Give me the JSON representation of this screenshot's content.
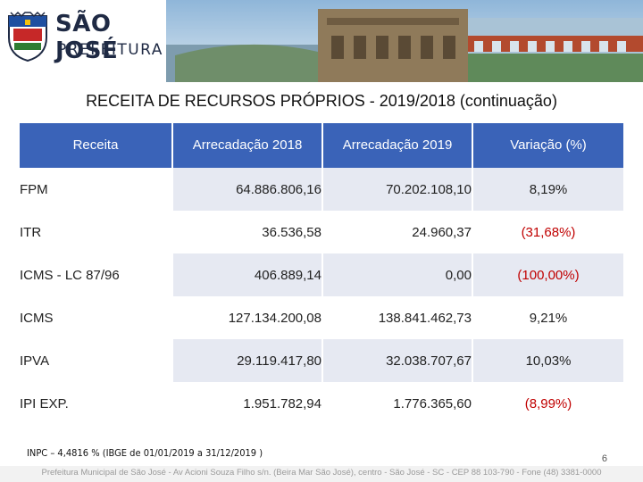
{
  "header": {
    "logo_line1": "SÃO JOSÉ",
    "logo_line2": "PREFEITURA"
  },
  "title": "RECEITA DE RECURSOS PRÓPRIOS  -  2019/2018  (continuação)",
  "table": {
    "columns": [
      "Receita",
      "Arrecadação 2018",
      "Arrecadação 2019",
      "Variação (%)"
    ],
    "rows": [
      {
        "receita": "FPM",
        "a2018": "64.886.806,16",
        "a2019": "70.202.108,10",
        "variacao": "8,19%"
      },
      {
        "receita": "ITR",
        "a2018": "36.536,58",
        "a2019": "24.960,37",
        "variacao": "(31,68%)"
      },
      {
        "receita": "ICMS  -  LC 87/96",
        "a2018": "406.889,14",
        "a2019": "0,00",
        "variacao": "(100,00%)"
      },
      {
        "receita": "ICMS",
        "a2018": "127.134.200,08",
        "a2019": "138.841.462,73",
        "variacao": "9,21%"
      },
      {
        "receita": "IPVA",
        "a2018": "29.119.417,80",
        "a2019": "32.038.707,67",
        "variacao": "10,03%"
      },
      {
        "receita": "IPI EXP.",
        "a2018": "1.951.782,94",
        "a2019": "1.776.365,60",
        "variacao": "(8,99%)"
      }
    ]
  },
  "footnote": "INPC – 4,4816 % (IBGE de 01/01/2019  a  31/12/2019 )",
  "page_number": "6",
  "footer": "Prefeitura Municipal de São José - Av Acioni Souza Filho s/n. (Beira Mar São José), centro - São José - SC - CEP 88 103-790 - Fone (48) 3381-0000",
  "colors": {
    "header_blue": "#3a63b8",
    "row_shade": "#e6e9f2",
    "negative": "#c00000"
  }
}
